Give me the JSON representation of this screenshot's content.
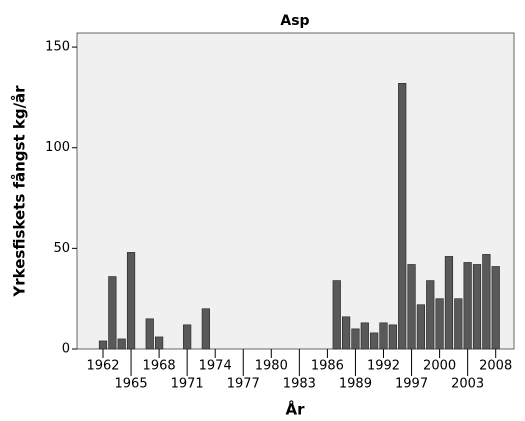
{
  "chart_data": {
    "type": "bar",
    "title": "Asp",
    "x_label": "År",
    "y_label": "Yrkesfiskets fångst kg/år",
    "categories": [
      "1962",
      null,
      null,
      "1965",
      null,
      null,
      "1968",
      null,
      null,
      "1971",
      null,
      null,
      "1974",
      null,
      null,
      "1977",
      null,
      null,
      "1980",
      null,
      null,
      "1983",
      null,
      null,
      "1986",
      null,
      null,
      "1989",
      null,
      null,
      "1992",
      null,
      null,
      "1997",
      null,
      null,
      "2000",
      null,
      null,
      "2003",
      null,
      null,
      "2008"
    ],
    "values": [
      4,
      36,
      5,
      48,
      0,
      15,
      6,
      0,
      0,
      12,
      0,
      20,
      0,
      0,
      0,
      0,
      0,
      0,
      0,
      0,
      0,
      0,
      0,
      0,
      0,
      34,
      16,
      10,
      13,
      8,
      13,
      12,
      132,
      42,
      22,
      34,
      25,
      46,
      25,
      43,
      42,
      47,
      41
    ],
    "color": "#595959",
    "ylim": [
      0,
      157
    ],
    "yticks": [
      0,
      50,
      100,
      150
    ]
  }
}
